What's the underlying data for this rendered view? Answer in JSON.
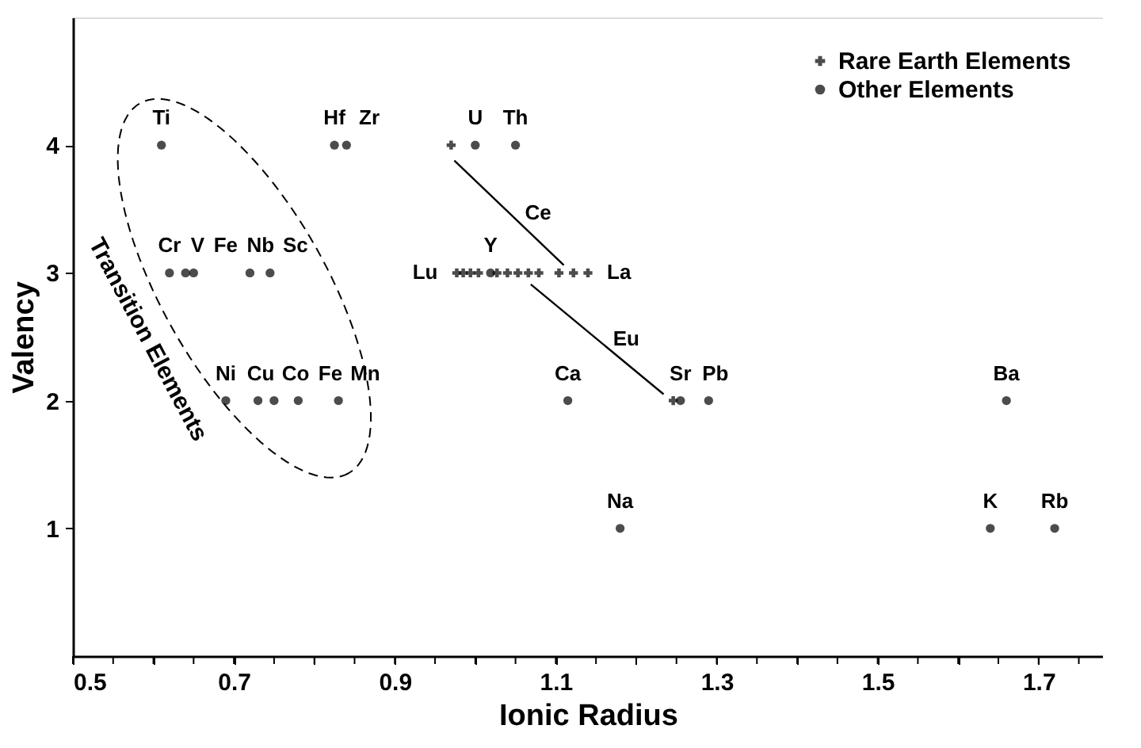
{
  "chart_data": {
    "type": "scatter",
    "xlabel": "Ionic Radius",
    "ylabel": "Valency",
    "xlim": [
      0.5,
      1.78
    ],
    "ylim": [
      0,
      5
    ],
    "xticks": [
      0.5,
      {
        "value": 0.55,
        "label": null
      },
      {
        "value": 0.6,
        "label": null
      },
      {
        "value": 0.65,
        "label": null
      },
      0.7,
      {
        "value": 0.75,
        "label": null
      },
      {
        "value": 0.8,
        "label": null
      },
      {
        "value": 0.85,
        "label": null
      },
      0.9,
      {
        "value": 0.95,
        "label": null
      },
      {
        "value": 1.0,
        "label": null
      },
      {
        "value": 1.05,
        "label": null
      },
      1.1,
      {
        "value": 1.15,
        "label": null
      },
      {
        "value": 1.2,
        "label": null
      },
      {
        "value": 1.25,
        "label": null
      },
      1.3,
      {
        "value": 1.35,
        "label": null
      },
      {
        "value": 1.4,
        "label": null
      },
      {
        "value": 1.45,
        "label": null
      },
      1.5,
      {
        "value": 1.55,
        "label": null
      },
      {
        "value": 1.6,
        "label": null
      },
      {
        "value": 1.65,
        "label": null
      },
      1.7,
      {
        "value": 1.75,
        "label": null
      }
    ],
    "yticks": [
      1,
      2,
      3,
      4
    ],
    "grid": false,
    "legend": "top right",
    "series": [
      {
        "name": "Rare Earth Elements",
        "marker": "cross",
        "color": "#000000",
        "x": [
          0.97,
          0.977,
          0.985,
          0.994,
          1.004,
          1.015,
          1.027,
          1.04,
          1.053,
          1.066,
          1.079,
          1.104,
          1.122,
          1.14,
          1.246
        ],
        "values": [
          4,
          3,
          3,
          3,
          3,
          null,
          3,
          3,
          3,
          3,
          3,
          3,
          3,
          3,
          2
        ]
      },
      {
        "name": "Other Elements",
        "marker": "circle",
        "color": "#000000",
        "x": [
          0.61,
          0.825,
          0.84,
          1.0,
          1.05,
          0.62,
          0.64,
          0.65,
          0.72,
          0.745,
          1.019,
          0.69,
          0.73,
          0.75,
          0.78,
          0.83,
          1.115,
          1.255,
          1.29,
          1.66,
          1.18,
          1.64,
          1.72
        ],
        "values": [
          4,
          4,
          4,
          4,
          4,
          3,
          3,
          3,
          3,
          3,
          3,
          2,
          2,
          2,
          2,
          2,
          2,
          2,
          2,
          2,
          1,
          1,
          1
        ]
      },
      {
        "type": "line",
        "color": "#000000",
        "x": [
          0.974,
          1.11
        ],
        "values": [
          3.88,
          3.06
        ]
      },
      {
        "type": "line",
        "color": "#000000",
        "x": [
          1.069,
          1.234
        ],
        "values": [
          2.91,
          2.05
        ]
      }
    ],
    "annotations": [
      "Transition Elements",
      {
        "text": "Ti",
        "x": 0.61,
        "y": 4
      },
      {
        "text": "Hf",
        "x": 0.825,
        "y": 4
      },
      {
        "text": "Zr",
        "x": 0.84,
        "y": 4
      },
      {
        "text": "U",
        "x": 1.0,
        "y": 4
      },
      {
        "text": "Th",
        "x": 1.05,
        "y": 4
      },
      {
        "text": "Cr",
        "x": 0.62,
        "y": 3
      },
      {
        "text": "V",
        "x": 0.64,
        "y": 3
      },
      {
        "text": "Fe",
        "x": 0.65,
        "y": 3
      },
      {
        "text": "Nb",
        "x": 0.72,
        "y": 3
      },
      {
        "text": "Sc",
        "x": 0.745,
        "y": 3
      },
      {
        "text": "Ni",
        "x": 0.69,
        "y": 2
      },
      {
        "text": "Cu",
        "x": 0.73,
        "y": 2
      },
      {
        "text": "Co",
        "x": 0.75,
        "y": 2
      },
      {
        "text": "Fe",
        "x": 0.78,
        "y": 2
      },
      {
        "text": "Mn",
        "x": 0.83,
        "y": 2
      },
      {
        "text": "Ce",
        "x": 1.042,
        "y": 3.47
      },
      {
        "text": "Lu",
        "x": 0.977,
        "y": 3
      },
      {
        "text": "La",
        "x": 1.14,
        "y": 3
      },
      {
        "text": "Y",
        "x": 1.019,
        "y": 3
      },
      {
        "text": "Eu",
        "x": 1.1515,
        "y": 2.48
      },
      {
        "text": "Ca",
        "x": 1.115,
        "y": 2
      },
      {
        "text": "Sr",
        "x": 1.255,
        "y": 2
      },
      {
        "text": "Pb",
        "x": 1.29,
        "y": 2
      },
      {
        "text": "Ba",
        "x": 1.66,
        "y": 2
      },
      {
        "text": "Na",
        "x": 1.18,
        "y": 1
      },
      {
        "text": "K",
        "x": 1.64,
        "y": 1
      },
      {
        "text": "Rb",
        "x": 1.72,
        "y": 1
      }
    ]
  }
}
